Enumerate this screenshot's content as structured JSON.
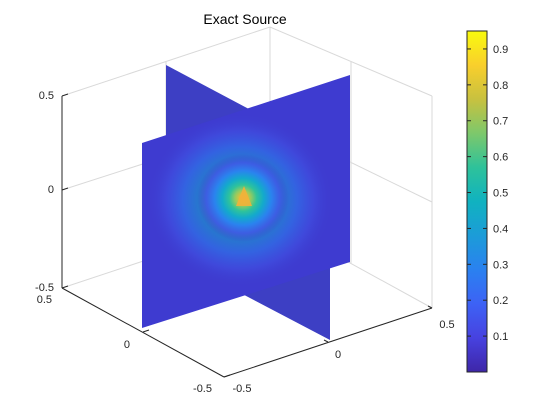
{
  "chart_data": {
    "type": "heatmap",
    "title": "Exact Source",
    "xlabel": "",
    "ylabel": "",
    "zlabel": "",
    "axes": {
      "x_ticks": [
        "-0.5",
        "0",
        "0.5"
      ],
      "y_ticks": [
        "0.5",
        "0",
        "-0.5"
      ],
      "z_ticks": [
        "0.5",
        "0",
        "-0.5"
      ],
      "xlim": [
        -0.5,
        0.5
      ],
      "ylim": [
        -0.5,
        0.5
      ],
      "zlim": [
        -0.5,
        0.5
      ]
    },
    "slices": [
      {
        "plane": "x",
        "value": 0
      },
      {
        "plane": "y",
        "value": 0
      }
    ],
    "source_center": [
      0,
      0,
      0
    ],
    "value_range": [
      0.0,
      0.95
    ],
    "colorbar": {
      "location": "right",
      "ticks": [
        "0.1",
        "0.2",
        "0.3",
        "0.4",
        "0.5",
        "0.6",
        "0.7",
        "0.8",
        "0.9"
      ],
      "colormap": "parula"
    },
    "grid": true
  }
}
